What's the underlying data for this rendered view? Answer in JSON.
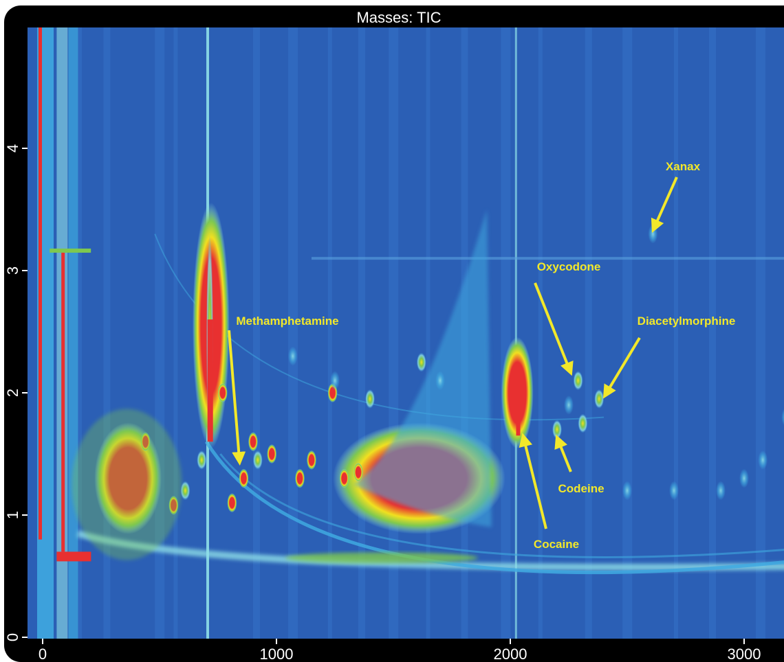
{
  "chart_data": {
    "type": "heatmap",
    "title": "Masses: TIC",
    "xlabel": "",
    "ylabel": "",
    "xlim": [
      0,
      3200
    ],
    "ylim": [
      0,
      5
    ],
    "x_ticks": [
      {
        "value": 0,
        "label": "0"
      },
      {
        "value": 1000,
        "label": "1000"
      },
      {
        "value": 2000,
        "label": "2000"
      },
      {
        "value": 3000,
        "label": "3000"
      }
    ],
    "y_ticks": [
      {
        "value": 0,
        "label": "0"
      },
      {
        "value": 1,
        "label": "1"
      },
      {
        "value": 2,
        "label": "2"
      },
      {
        "value": 3,
        "label": "3"
      },
      {
        "value": 4,
        "label": "4"
      }
    ],
    "colormap": [
      "#2a5db0",
      "#3fa9e0",
      "#8fe0e8",
      "#7ec850",
      "#f0e020",
      "#e83030"
    ],
    "background_color": "#2b5fb5",
    "annotation_color": "#f2e82a",
    "annotations": [
      {
        "label": "Methamphetamine",
        "x": 840,
        "y": 1.38
      },
      {
        "label": "Oxycodone",
        "x": 2250,
        "y": 2.18
      },
      {
        "label": "Diacetylmorphine",
        "x": 2400,
        "y": 1.92
      },
      {
        "label": "Xanax",
        "x": 2610,
        "y": 3.35
      },
      {
        "label": "Codeine",
        "x": 2190,
        "y": 1.66
      },
      {
        "label": "Cocaine",
        "x": 2050,
        "y": 1.62
      }
    ],
    "intensity_regions": [
      {
        "x": [
          280,
          450
        ],
        "y": [
          0.9,
          1.7
        ],
        "level": "high"
      },
      {
        "x": [
          1300,
          1920
        ],
        "y": [
          0.9,
          1.7
        ],
        "level": "high"
      },
      {
        "x": [
          700,
          740
        ],
        "y": [
          1.6,
          3.5
        ],
        "level": "high"
      },
      {
        "x": [
          2020,
          2040
        ],
        "y": [
          1.6,
          2.4
        ],
        "level": "high"
      }
    ]
  }
}
